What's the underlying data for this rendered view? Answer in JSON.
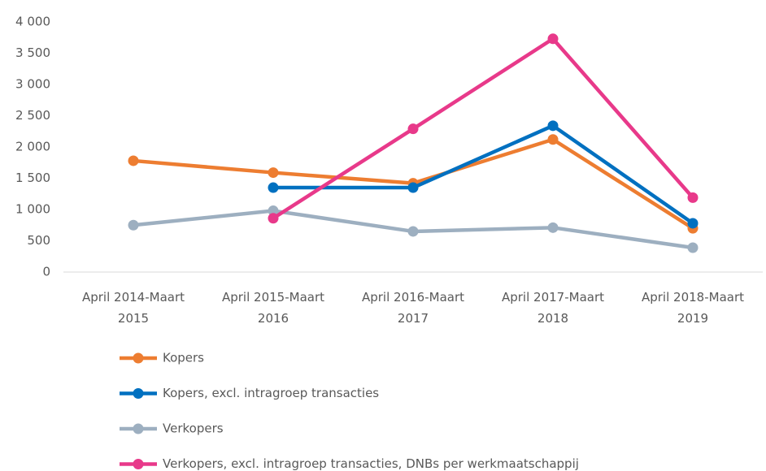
{
  "chart_data": {
    "type": "line",
    "categories": [
      "April 2014-Maart 2015",
      "April 2015-Maart 2016",
      "April 2016-Maart 2017",
      "April 2017-Maart 2018",
      "April 2018-Maart 2019"
    ],
    "series": [
      {
        "name": "Kopers",
        "color": "#ed7d31",
        "values": [
          1780,
          1590,
          1420,
          2120,
          700
        ]
      },
      {
        "name": "Kopers, excl. intragroep transacties",
        "color": "#0070c0",
        "values": [
          null,
          1350,
          1350,
          2340,
          780
        ]
      },
      {
        "name": "Verkopers",
        "color": "#9dafc0",
        "values": [
          750,
          980,
          650,
          710,
          390
        ]
      },
      {
        "name": "Verkopers, excl. intragroep transacties, DNBs per werkmaatschappij",
        "color": "#e8398a",
        "values": [
          null,
          860,
          2290,
          3730,
          1190
        ]
      }
    ],
    "ylim": [
      0,
      4000
    ],
    "yticks": [
      0,
      500,
      {
        "value": 1000,
        "label": "1 000"
      },
      {
        "value": 1500,
        "label": "1 500"
      },
      {
        "value": 2000,
        "label": "2 000"
      },
      {
        "value": 2500,
        "label": "2 500"
      },
      {
        "value": 3000,
        "label": "3 000"
      },
      {
        "value": 3500,
        "label": "3 500"
      },
      {
        "value": 4000,
        "label": "4 000"
      }
    ],
    "grid": false,
    "legend": "bottom"
  }
}
